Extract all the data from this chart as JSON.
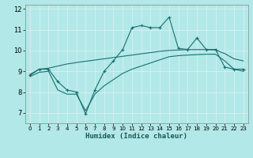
{
  "xlabel": "Humidex (Indice chaleur)",
  "ylabel": "",
  "bg_color": "#b2e8e8",
  "grid_color": "#d8f0f0",
  "line_color": "#1a7070",
  "xlim": [
    -0.5,
    23.5
  ],
  "ylim": [
    6.5,
    12.2
  ],
  "xticks": [
    0,
    1,
    2,
    3,
    4,
    5,
    6,
    7,
    8,
    9,
    10,
    11,
    12,
    13,
    14,
    15,
    16,
    17,
    18,
    19,
    20,
    21,
    22,
    23
  ],
  "yticks": [
    7,
    8,
    9,
    10,
    11,
    12
  ],
  "series1_x": [
    0,
    1,
    2,
    3,
    4,
    5,
    6,
    7,
    8,
    9,
    10,
    11,
    12,
    13,
    14,
    15,
    16,
    17,
    18,
    19,
    20,
    21,
    22,
    23
  ],
  "series1_y": [
    8.8,
    9.1,
    9.1,
    8.5,
    8.1,
    8.0,
    6.95,
    8.1,
    9.0,
    9.5,
    10.05,
    11.1,
    11.2,
    11.1,
    11.1,
    11.6,
    10.1,
    10.05,
    10.6,
    10.05,
    10.05,
    9.2,
    9.1,
    9.1
  ],
  "series2_x": [
    0,
    1,
    2,
    3,
    4,
    5,
    6,
    7,
    8,
    9,
    10,
    11,
    12,
    13,
    14,
    15,
    16,
    17,
    18,
    19,
    20,
    21,
    22,
    23
  ],
  "series2_y": [
    8.85,
    9.1,
    9.15,
    9.25,
    9.35,
    9.42,
    9.48,
    9.54,
    9.6,
    9.66,
    9.72,
    9.78,
    9.84,
    9.9,
    9.96,
    10.0,
    10.02,
    10.04,
    10.04,
    10.04,
    10.02,
    9.85,
    9.6,
    9.5
  ],
  "series3_x": [
    0,
    1,
    2,
    3,
    4,
    5,
    6,
    7,
    8,
    9,
    10,
    11,
    12,
    13,
    14,
    15,
    16,
    17,
    18,
    19,
    20,
    21,
    22,
    23
  ],
  "series3_y": [
    8.75,
    8.95,
    9.0,
    8.1,
    7.9,
    7.9,
    7.1,
    7.9,
    8.3,
    8.6,
    8.9,
    9.1,
    9.25,
    9.4,
    9.55,
    9.7,
    9.75,
    9.78,
    9.8,
    9.82,
    9.82,
    9.5,
    9.1,
    9.0
  ]
}
